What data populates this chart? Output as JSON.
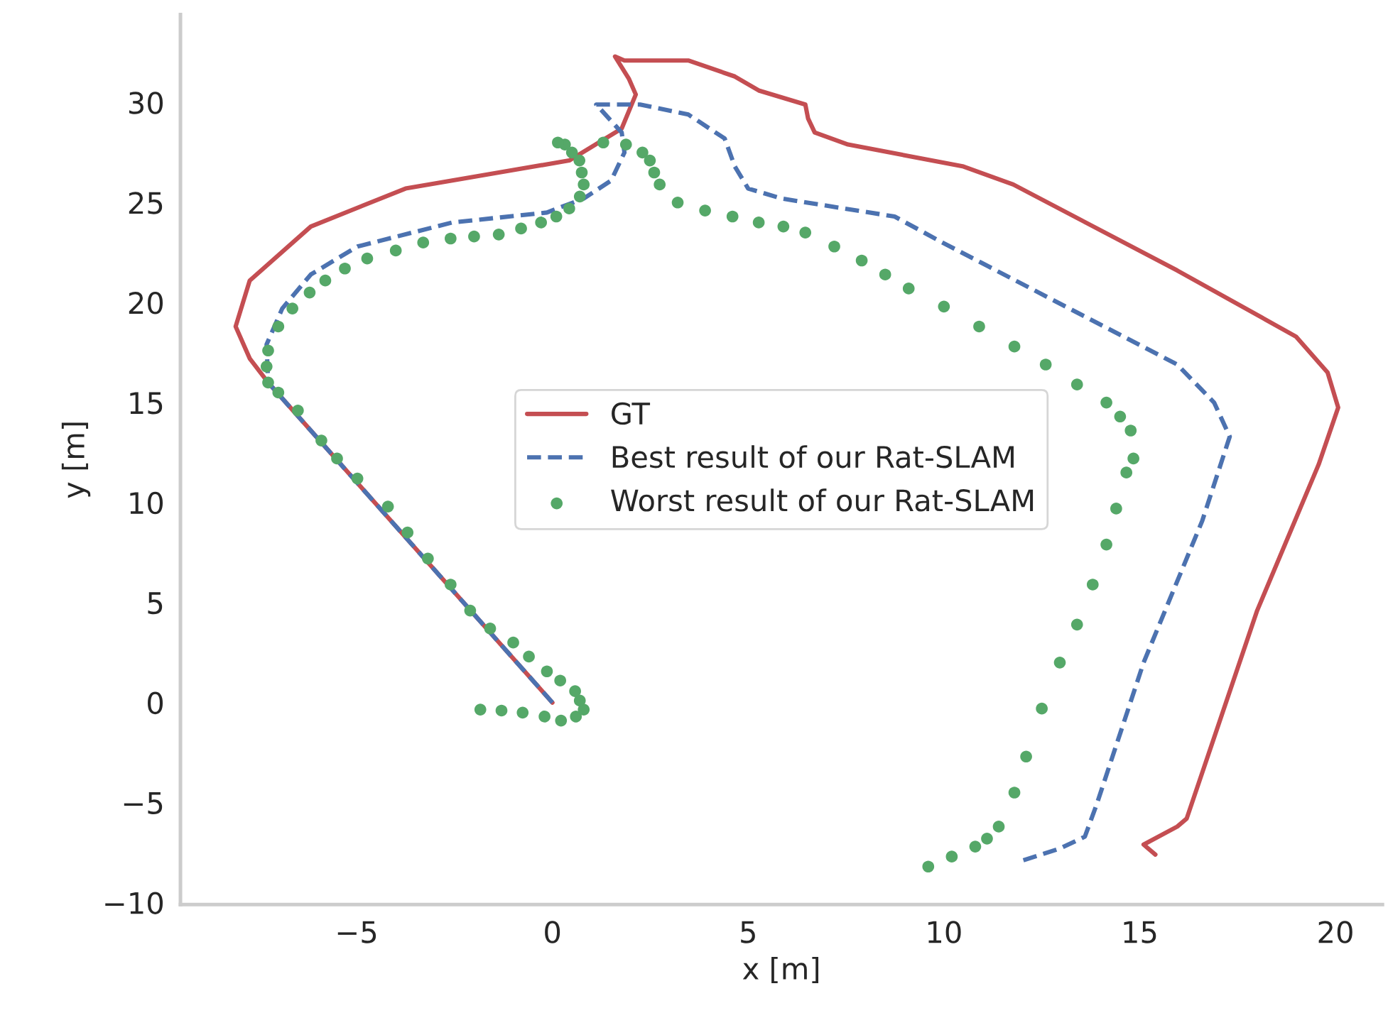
{
  "chart_data": {
    "type": "line",
    "xlabel": "x [m]",
    "ylabel": "y [m]",
    "xlim": [
      -9.5,
      21.2
    ],
    "ylim": [
      -10.1,
      34.4
    ],
    "xticks": [
      {
        "value": -5,
        "label": "−5"
      },
      0,
      5,
      10,
      15,
      20
    ],
    "yticks": [
      {
        "value": -10,
        "label": "−10"
      },
      {
        "value": -5,
        "label": "−5"
      },
      0,
      5,
      10,
      15,
      20,
      25,
      30
    ],
    "grid": false,
    "legend": "center",
    "series": [
      {
        "name": "GT",
        "line_style": "solid",
        "color": "#c44e52",
        "x": [
          0,
          -7.26,
          -7.73,
          -8.09,
          -7.73,
          -6.17,
          -3.75,
          -1.37,
          0.43,
          1.77,
          2.13,
          1.95,
          1.6,
          1.84,
          3.47,
          4.66,
          5.27,
          6.46,
          6.53,
          6.7,
          7.55,
          10.5,
          11.77,
          15.96,
          18.99,
          19.8,
          20.07,
          19.57,
          18.0,
          16.2,
          15.96,
          15.1,
          15.4
        ],
        "values": [
          0,
          16.0,
          17.2,
          18.8,
          21.1,
          23.8,
          25.7,
          26.5,
          27.1,
          28.7,
          30.4,
          31.2,
          32.3,
          32.1,
          32.1,
          31.3,
          30.6,
          29.9,
          29.2,
          28.5,
          27.9,
          26.8,
          25.9,
          21.6,
          18.3,
          16.5,
          14.75,
          11.9,
          4.6,
          -5.8,
          -6.2,
          -7.1,
          -7.6
        ]
      },
      {
        "name": "Best result of our Rat-SLAM",
        "line_style": "dashed",
        "color": "#4c72b0",
        "x": [
          0,
          -7.26,
          -7.3,
          -6.9,
          -6.17,
          -4.98,
          -2.56,
          -0.14,
          0.8,
          1.5,
          1.84,
          1.77,
          1.12,
          2.24,
          3.47,
          4.4,
          4.66,
          5.0,
          5.85,
          8.74,
          9.96,
          15.96,
          16.9,
          17.3,
          16.6,
          15.1,
          13.9,
          13.6,
          12.96,
          12.0
        ],
        "values": [
          0,
          16.0,
          17.9,
          19.7,
          21.4,
          22.8,
          24.0,
          24.5,
          25.2,
          26.1,
          27.5,
          28.5,
          29.9,
          29.9,
          29.4,
          28.2,
          26.8,
          25.7,
          25.2,
          24.3,
          23.0,
          16.9,
          15.0,
          13.3,
          9.1,
          2.0,
          -5.1,
          -6.7,
          -7.3,
          -7.9
        ]
      },
      {
        "name": "Worst result of our Rat-SLAM",
        "type": "scatter",
        "marker": "circle",
        "color": "#55a868",
        "x": [
          -1.84,
          -1.3,
          -0.76,
          -0.2,
          0.22,
          0.6,
          0.8,
          0.7,
          0.58,
          0.2,
          -0.14,
          -0.6,
          -1.0,
          -1.59,
          -2.1,
          -2.6,
          -3.18,
          -3.7,
          -4.2,
          -4.98,
          -5.5,
          -5.9,
          -6.5,
          -7.0,
          -7.26,
          -7.3,
          -7.26,
          -7.0,
          -6.64,
          -6.2,
          -5.8,
          -5.3,
          -4.73,
          -4.0,
          -3.3,
          -2.6,
          -2.0,
          -1.37,
          -0.8,
          -0.29,
          0.1,
          0.43,
          0.7,
          0.8,
          0.75,
          0.69,
          0.5,
          0.32,
          0.14,
          1.3,
          1.88,
          2.3,
          2.49,
          2.6,
          2.74,
          3.2,
          3.9,
          4.6,
          5.27,
          5.9,
          6.46,
          7.2,
          7.9,
          8.5,
          9.1,
          10.0,
          10.9,
          11.8,
          12.6,
          13.4,
          14.15,
          14.5,
          14.77,
          14.84,
          14.66,
          14.4,
          14.15,
          13.8,
          13.4,
          12.96,
          12.5,
          12.1,
          11.8,
          11.4,
          11.1,
          10.8,
          10.2,
          9.6
        ],
        "values": [
          -0.35,
          -0.4,
          -0.5,
          -0.7,
          -0.9,
          -0.7,
          -0.35,
          0.1,
          0.57,
          1.1,
          1.56,
          2.3,
          3.0,
          3.7,
          4.6,
          5.9,
          7.2,
          8.5,
          9.8,
          11.2,
          12.2,
          13.1,
          14.6,
          15.5,
          16.0,
          16.8,
          17.6,
          18.8,
          19.7,
          20.5,
          21.1,
          21.7,
          22.2,
          22.6,
          23.0,
          23.2,
          23.3,
          23.4,
          23.7,
          24.0,
          24.3,
          24.7,
          25.3,
          25.9,
          26.5,
          27.1,
          27.5,
          27.9,
          28.0,
          28.0,
          27.9,
          27.5,
          27.1,
          26.5,
          25.9,
          25.0,
          24.6,
          24.3,
          24.0,
          23.8,
          23.5,
          22.8,
          22.1,
          21.4,
          20.7,
          19.8,
          18.8,
          17.8,
          16.9,
          15.9,
          15.0,
          14.3,
          13.6,
          12.2,
          11.5,
          9.7,
          7.9,
          5.9,
          3.9,
          2.0,
          -0.3,
          -2.7,
          -4.5,
          -6.2,
          -6.8,
          -7.2,
          -7.7,
          -8.2
        ]
      }
    ]
  }
}
